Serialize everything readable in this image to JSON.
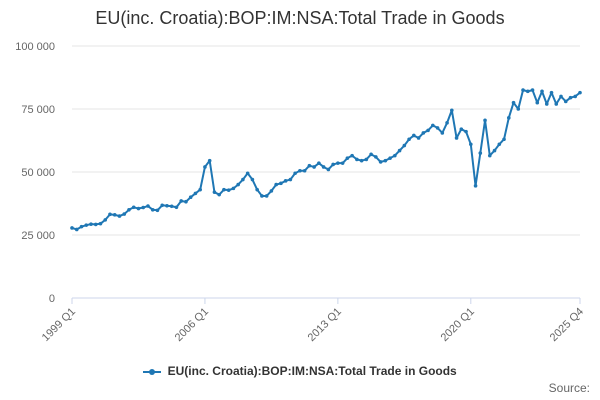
{
  "chart_data": {
    "type": "line",
    "title": "EU(inc. Croatia):BOP:IM:NSA:Total Trade in Goods",
    "xlabel": "",
    "ylabel": "",
    "x_start_quarter": "1999 Q1",
    "x_tick_labels": [
      "1999 Q1",
      "2006 Q1",
      "2013 Q1",
      "2020 Q1",
      "2025 Q4"
    ],
    "y_tick_labels": [
      "0",
      "25 000",
      "50 000",
      "75 000",
      "100 000"
    ],
    "ylim": [
      0,
      100000
    ],
    "grid": true,
    "legend_position": "bottom",
    "source_label": "Source:",
    "series_color": "#1f77b4",
    "series": [
      {
        "name": "EU(inc. Croatia):BOP:IM:NSA:Total Trade in Goods",
        "values": [
          27800,
          27200,
          28300,
          28900,
          29300,
          29200,
          29500,
          31000,
          33200,
          33000,
          32500,
          33300,
          35000,
          36000,
          35500,
          35900,
          36500,
          35000,
          34800,
          36800,
          36600,
          36400,
          36000,
          38500,
          38200,
          40000,
          41500,
          43000,
          52000,
          54500,
          42000,
          41000,
          43000,
          42800,
          43500,
          45000,
          47000,
          49500,
          47000,
          43000,
          40500,
          40500,
          42500,
          45000,
          45500,
          46500,
          47000,
          49500,
          50500,
          50500,
          52500,
          52000,
          53500,
          52000,
          51000,
          53000,
          53500,
          53500,
          55500,
          56500,
          55000,
          54500,
          55000,
          57000,
          56000,
          54000,
          54500,
          55500,
          56500,
          58500,
          60500,
          63000,
          64500,
          63500,
          65500,
          66500,
          68500,
          67500,
          65500,
          69500,
          74500,
          63500,
          67000,
          66000,
          61000,
          44500,
          57500,
          70500,
          56500,
          58500,
          61000,
          63000,
          71500,
          77500,
          75000,
          82500,
          82000,
          82500,
          77500,
          82000,
          77000,
          81500,
          77000,
          80000,
          78000,
          79500,
          80000,
          81500
        ]
      }
    ]
  }
}
